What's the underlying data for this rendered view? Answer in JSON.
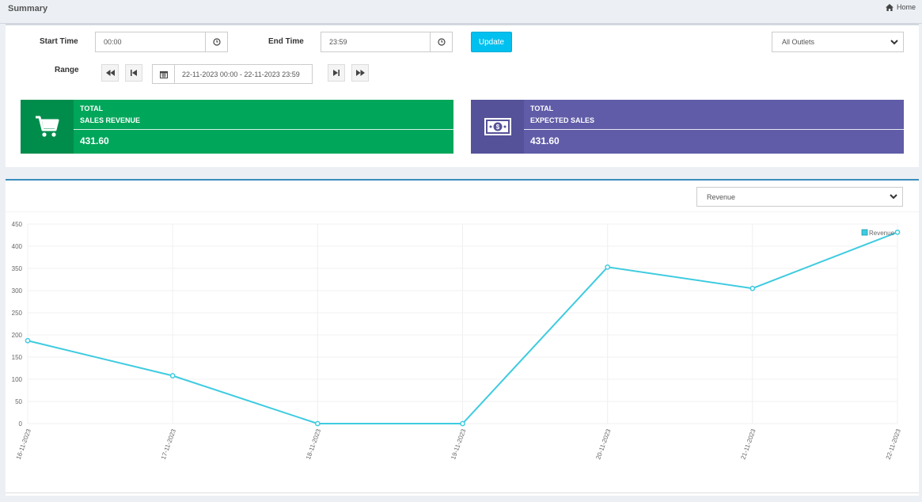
{
  "header": {
    "title": "Summary",
    "breadcrumb_home": "Home"
  },
  "filters": {
    "start_time_label": "Start Time",
    "start_time_value": "00:00",
    "end_time_label": "End Time",
    "end_time_value": "23:59",
    "update_label": "Update",
    "outlet_selected": "All Outlets",
    "range_label": "Range",
    "range_value": "22-11-2023 00:00 - 22-11-2023 23:59"
  },
  "cards": {
    "sales_revenue": {
      "line1": "TOTAL",
      "line2": "SALES REVENUE",
      "value": "431.60",
      "color": "#00a65a",
      "icon_bg": "#008d4c",
      "icon": "cart-icon"
    },
    "expected_sales": {
      "line1": "TOTAL",
      "line2": "EXPECTED SALES",
      "value": "431.60",
      "color": "#605ca8",
      "icon_bg": "#555299",
      "icon": "money-icon"
    }
  },
  "chart_select": {
    "selected": "Revenue"
  },
  "chart_data": {
    "type": "line",
    "x": [
      "16-11-2023",
      "17-11-2023",
      "18-11-2023",
      "19-11-2023",
      "20-11-2023",
      "21-11-2023",
      "22-11-2023"
    ],
    "series": [
      {
        "name": "Revenue",
        "values": [
          187,
          108,
          0,
          0,
          353,
          305,
          431.6
        ],
        "color": "#3ecbe0"
      }
    ],
    "ylim": [
      0,
      450
    ],
    "yticks": [
      0,
      50,
      100,
      150,
      200,
      250,
      300,
      350,
      400,
      450
    ],
    "grid": true,
    "legend": "top-right"
  }
}
